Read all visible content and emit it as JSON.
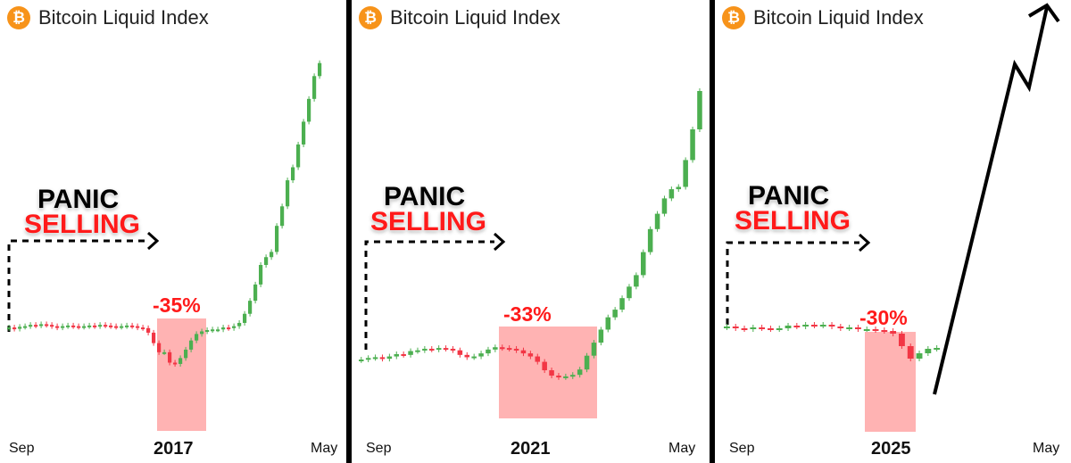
{
  "panels": [
    {
      "title": "Bitcoin Liquid Index",
      "panic": "PANIC",
      "selling": "SELLING",
      "drop": "-35%",
      "x_start": "Sep",
      "x_year": "2017",
      "x_end": "May"
    },
    {
      "title": "Bitcoin Liquid Index",
      "panic": "PANIC",
      "selling": "SELLING",
      "drop": "-33%",
      "x_start": "Sep",
      "x_year": "2021",
      "x_end": "May"
    },
    {
      "title": "Bitcoin Liquid Index",
      "panic": "PANIC",
      "selling": "SELLING",
      "drop": "-30%",
      "x_start": "Sep",
      "x_year": "2025",
      "x_end": "May"
    }
  ],
  "icon": "bitcoin-icon",
  "colors": {
    "up": "#4caf50",
    "down": "#f23645",
    "highlight": "#ff9a9a",
    "arrow": "#000000",
    "divider": "#000000"
  },
  "chart_data": [
    {
      "type": "candlestick",
      "title": "Bitcoin Liquid Index",
      "x_labels": [
        "Sep",
        "2017",
        "May"
      ],
      "annotations": [
        "PANIC",
        "SELLING",
        "-35%"
      ],
      "close": [
        104,
        102,
        105,
        106,
        108,
        107,
        109,
        108,
        106,
        104,
        106,
        107,
        106,
        105,
        106,
        107,
        106,
        108,
        107,
        106,
        105,
        106,
        107,
        106,
        104,
        103,
        96,
        80,
        66,
        66,
        50,
        48,
        57,
        70,
        84,
        94,
        98,
        100,
        101,
        101,
        104,
        103,
        106,
        111,
        125,
        145,
        170,
        200,
        212,
        220,
        260,
        290,
        330,
        350,
        385,
        420,
        455,
        490,
        510
      ]
    },
    {
      "type": "candlestick",
      "title": "Bitcoin Liquid Index",
      "x_labels": [
        "Sep",
        "2021",
        "May"
      ],
      "annotations": [
        "PANIC",
        "SELLING",
        "-33%"
      ],
      "close": [
        100,
        102,
        103,
        101,
        104,
        107,
        106,
        111,
        112,
        114,
        113,
        115,
        114,
        112,
        106,
        103,
        104,
        108,
        113,
        116,
        115,
        114,
        112,
        108,
        104,
        97,
        86,
        79,
        77,
        78,
        80,
        87,
        105,
        122,
        139,
        155,
        165,
        180,
        195,
        210,
        240,
        270,
        290,
        310,
        322,
        325,
        360,
        400,
        450
      ]
    },
    {
      "type": "candlestick",
      "title": "Bitcoin Liquid Index",
      "x_labels": [
        "Sep",
        "2025",
        "May"
      ],
      "annotations": [
        "PANIC",
        "SELLING",
        "-30%"
      ],
      "close": [
        100,
        98,
        97,
        99,
        98,
        97,
        98,
        101,
        100,
        102,
        101,
        102,
        100,
        98,
        99,
        97,
        97,
        96,
        95,
        92,
        78,
        64,
        70,
        75,
        76
      ]
    }
  ]
}
